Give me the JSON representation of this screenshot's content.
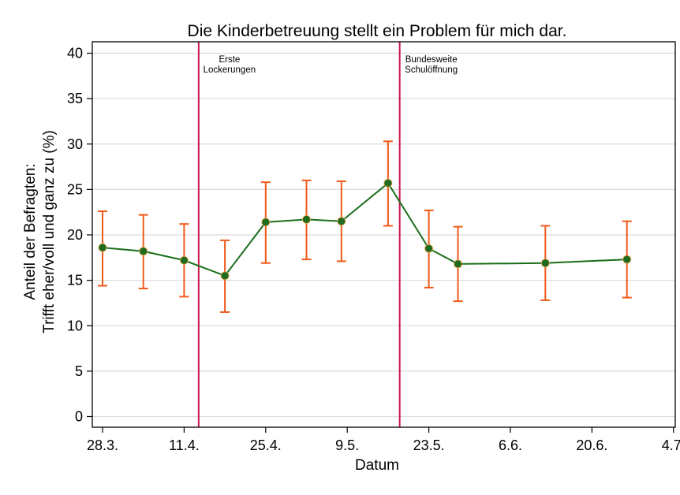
{
  "chart_data": {
    "type": "line",
    "title": "Die Kinderbetreuung stellt ein Problem für mich dar.",
    "xlabel": "Datum",
    "ylabel_lines": [
      "Anteil der Befragten:",
      "Trifft eher/voll und ganz zu (%)"
    ],
    "ylim": [
      0,
      40
    ],
    "yticks": [
      "0",
      "5",
      "10",
      "15",
      "20",
      "25",
      "30",
      "35",
      "40"
    ],
    "xticks": [
      "28.3.",
      "11.4.",
      "25.4.",
      "9.5.",
      "23.5.",
      "6.6.",
      "20.6.",
      "4.7."
    ],
    "grid": true,
    "colors": {
      "line": "#1a6e1a",
      "marker": "#1f6b1f",
      "error_bar": "#f05a1a",
      "vline": "#c8174b"
    },
    "series": [
      {
        "x_days": [
          0,
          7,
          14,
          21,
          28,
          35,
          41,
          49,
          56,
          61,
          76,
          90
        ],
        "dates": [
          "28.3.",
          "4.4.",
          "11.4.",
          "18.4.",
          "25.4.",
          "2.5.",
          "8.5.",
          "16.5.",
          "23.5.",
          "28.5.",
          "12.6.",
          "26.6."
        ],
        "values": [
          18.6,
          18.2,
          17.2,
          15.5,
          21.4,
          21.7,
          21.5,
          25.7,
          18.5,
          16.8,
          16.9,
          17.3
        ],
        "lower": [
          14.4,
          14.1,
          13.2,
          11.5,
          16.9,
          17.3,
          17.1,
          21.0,
          14.2,
          12.7,
          12.8,
          13.1
        ],
        "upper": [
          22.6,
          22.2,
          21.2,
          19.4,
          25.8,
          26.0,
          25.9,
          30.3,
          22.7,
          20.9,
          21.0,
          21.5
        ]
      }
    ],
    "annotations": [
      {
        "x_day": 16.5,
        "lines": [
          "Erste",
          "Lockerungen"
        ]
      },
      {
        "x_day": 51,
        "lines": [
          "Bundesweite",
          "Schulöffnung"
        ]
      }
    ]
  }
}
